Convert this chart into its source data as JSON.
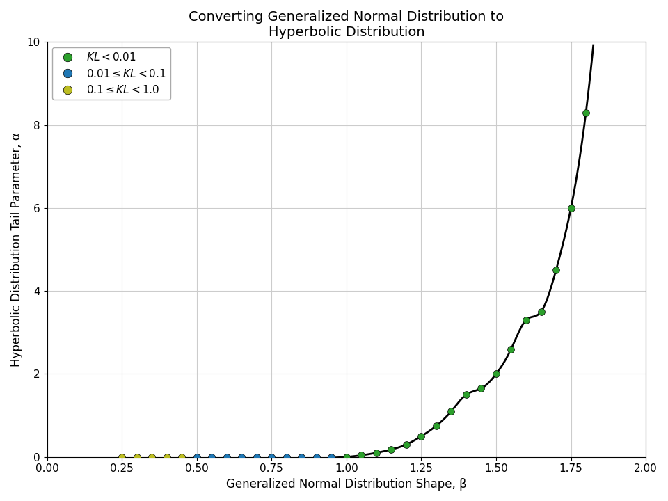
{
  "title": "Converting Generalized Normal Distribution to\nHyperbolic Distribution",
  "xlabel": "Generalized Normal Distribution Shape, β",
  "ylabel": "Hyperbolic Distribution Tail Parameter, α",
  "xlim": [
    0.0,
    2.0
  ],
  "ylim": [
    0,
    10
  ],
  "xticks": [
    0.0,
    0.25,
    0.5,
    0.75,
    1.0,
    1.25,
    1.5,
    1.75,
    2.0
  ],
  "xtick_labels": [
    "0.00",
    "0.25",
    "0.50",
    "0.75",
    "1.00",
    "1.25",
    "1.50",
    "1.75",
    "2.00"
  ],
  "yticks": [
    0,
    2,
    4,
    6,
    8,
    10
  ],
  "legend_colors": [
    "#2ca02c",
    "#1f77b4",
    "#bcbd22"
  ],
  "dot_data": [
    {
      "beta": 0.25,
      "alpha": 0.0,
      "kl": 0.15
    },
    {
      "beta": 0.3,
      "alpha": 0.0,
      "kl": 0.13
    },
    {
      "beta": 0.35,
      "alpha": 0.0,
      "kl": 0.12
    },
    {
      "beta": 0.4,
      "alpha": 0.0,
      "kl": 0.11
    },
    {
      "beta": 0.45,
      "alpha": 0.0,
      "kl": 0.1
    },
    {
      "beta": 0.5,
      "alpha": 0.0,
      "kl": 0.05
    },
    {
      "beta": 0.55,
      "alpha": 0.0,
      "kl": 0.04
    },
    {
      "beta": 0.6,
      "alpha": 0.0,
      "kl": 0.03
    },
    {
      "beta": 0.65,
      "alpha": 0.0,
      "kl": 0.03
    },
    {
      "beta": 0.7,
      "alpha": 0.0,
      "kl": 0.02
    },
    {
      "beta": 0.75,
      "alpha": 0.0,
      "kl": 0.02
    },
    {
      "beta": 0.8,
      "alpha": 0.0,
      "kl": 0.015
    },
    {
      "beta": 0.85,
      "alpha": 0.0,
      "kl": 0.015
    },
    {
      "beta": 0.9,
      "alpha": 0.0,
      "kl": 0.015
    },
    {
      "beta": 0.95,
      "alpha": 0.0,
      "kl": 0.015
    },
    {
      "beta": 1.0,
      "alpha": 0.0,
      "kl": 0.005
    },
    {
      "beta": 1.05,
      "alpha": 0.04,
      "kl": 0.005
    },
    {
      "beta": 1.1,
      "alpha": 0.1,
      "kl": 0.005
    },
    {
      "beta": 1.15,
      "alpha": 0.18,
      "kl": 0.005
    },
    {
      "beta": 1.2,
      "alpha": 0.3,
      "kl": 0.005
    },
    {
      "beta": 1.25,
      "alpha": 0.5,
      "kl": 0.005
    },
    {
      "beta": 1.3,
      "alpha": 0.75,
      "kl": 0.005
    },
    {
      "beta": 1.35,
      "alpha": 1.1,
      "kl": 0.005
    },
    {
      "beta": 1.4,
      "alpha": 1.5,
      "kl": 0.005
    },
    {
      "beta": 1.45,
      "alpha": 1.65,
      "kl": 0.005
    },
    {
      "beta": 1.5,
      "alpha": 2.0,
      "kl": 0.005
    },
    {
      "beta": 1.55,
      "alpha": 2.6,
      "kl": 0.005
    },
    {
      "beta": 1.6,
      "alpha": 3.3,
      "kl": 0.005
    },
    {
      "beta": 1.65,
      "alpha": 3.5,
      "kl": 0.005
    },
    {
      "beta": 1.7,
      "alpha": 4.5,
      "kl": 0.005
    },
    {
      "beta": 1.75,
      "alpha": 6.0,
      "kl": 0.005
    },
    {
      "beta": 1.8,
      "alpha": 8.3,
      "kl": 0.005
    }
  ],
  "line_color": "black",
  "line_width": 2.0,
  "marker_size": 50,
  "marker_edge_color": "black",
  "marker_edge_width": 0.5,
  "background_color": "white",
  "grid_color": "#cccccc",
  "title_fontsize": 14,
  "label_fontsize": 12,
  "tick_fontsize": 11,
  "legend_fontsize": 11
}
